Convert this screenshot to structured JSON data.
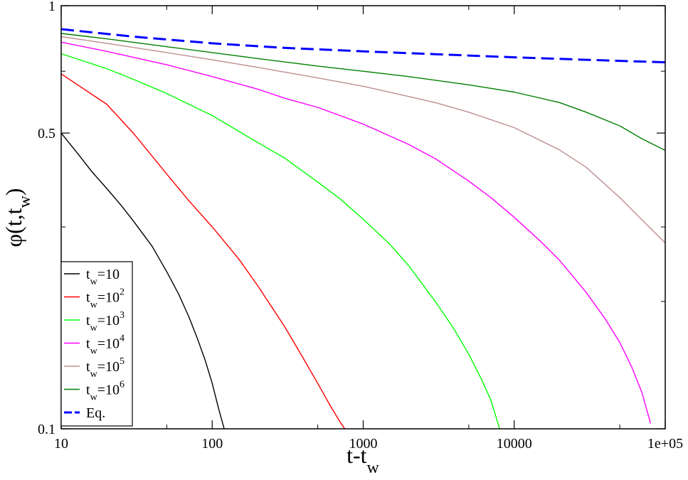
{
  "chart_data": {
    "type": "line",
    "xscale": "log",
    "yscale": "log",
    "xlim": [
      10,
      100000
    ],
    "ylim": [
      0.1,
      1
    ],
    "xlabel": {
      "main": "t-t",
      "sub": "w"
    },
    "ylabel": {
      "main": "φ(t,t",
      "sub": "w",
      "close": ")"
    },
    "x_ticks": [
      {
        "value": 10,
        "label": "10"
      },
      {
        "value": 100,
        "label": "100"
      },
      {
        "value": 1000,
        "label": "1000"
      },
      {
        "value": 10000,
        "label": "10000"
      },
      {
        "value": 100000,
        "label": "1e+05"
      }
    ],
    "y_ticks": [
      {
        "value": 0.1,
        "label": "0.1"
      },
      {
        "value": 0.5,
        "label": "0.5"
      },
      {
        "value": 1,
        "label": "1"
      }
    ],
    "legend_position": "bottom-left",
    "series": [
      {
        "name": "t_w=10",
        "label_base": "t",
        "label_sub": "w",
        "label_eq": "=10",
        "label_sup": "",
        "color": "#000000",
        "dashed": false,
        "x": [
          10,
          13,
          16,
          20,
          25,
          30,
          40,
          50,
          60,
          70,
          80,
          90,
          100,
          110,
          120
        ],
        "y": [
          0.5,
          0.445,
          0.405,
          0.37,
          0.337,
          0.31,
          0.27,
          0.235,
          0.208,
          0.184,
          0.163,
          0.145,
          0.128,
          0.112,
          0.1
        ]
      },
      {
        "name": "t_w=10^2",
        "label_base": "t",
        "label_sub": "w",
        "label_eq": "=10",
        "label_sup": "2",
        "color": "#ff0000",
        "dashed": false,
        "x": [
          10,
          20,
          30,
          50,
          70,
          100,
          150,
          200,
          300,
          400,
          500,
          600,
          700,
          800
        ],
        "y": [
          0.69,
          0.585,
          0.5,
          0.4,
          0.346,
          0.3,
          0.252,
          0.218,
          0.175,
          0.147,
          0.128,
          0.114,
          0.104,
          0.097
        ]
      },
      {
        "name": "t_w=10^3",
        "label_base": "t",
        "label_sub": "w",
        "label_eq": "=10",
        "label_sup": "3",
        "color": "#00ff00",
        "dashed": false,
        "x": [
          10,
          20,
          30,
          50,
          100,
          200,
          300,
          500,
          700,
          1000,
          1500,
          2000,
          3000,
          4000,
          5000,
          6000,
          7000,
          8000
        ],
        "y": [
          0.77,
          0.71,
          0.67,
          0.62,
          0.55,
          0.475,
          0.437,
          0.383,
          0.35,
          0.313,
          0.273,
          0.243,
          0.2,
          0.172,
          0.15,
          0.132,
          0.117,
          0.1
        ]
      },
      {
        "name": "t_w=10^4",
        "label_base": "t",
        "label_sub": "w",
        "label_eq": "=10",
        "label_sup": "4",
        "color": "#ff00ff",
        "dashed": false,
        "x": [
          10,
          20,
          30,
          50,
          100,
          200,
          300,
          500,
          1000,
          2000,
          3000,
          5000,
          7000,
          10000,
          15000,
          20000,
          30000,
          40000,
          50000,
          60000,
          70000,
          80000
        ],
        "y": [
          0.82,
          0.78,
          0.755,
          0.725,
          0.68,
          0.635,
          0.605,
          0.575,
          0.525,
          0.47,
          0.435,
          0.385,
          0.352,
          0.316,
          0.277,
          0.25,
          0.21,
          0.182,
          0.16,
          0.14,
          0.122,
          0.103
        ]
      },
      {
        "name": "t_w=10^5",
        "label_base": "t",
        "label_sub": "w",
        "label_eq": "=10",
        "label_sup": "5",
        "color": "#bc8f8f",
        "dashed": false,
        "x": [
          10,
          20,
          50,
          100,
          200,
          500,
          1000,
          2000,
          3000,
          5000,
          10000,
          20000,
          30000,
          50000,
          70000,
          100000
        ],
        "y": [
          0.845,
          0.815,
          0.775,
          0.745,
          0.715,
          0.675,
          0.645,
          0.61,
          0.59,
          0.56,
          0.515,
          0.456,
          0.415,
          0.352,
          0.312,
          0.275
        ]
      },
      {
        "name": "t_w=10^6",
        "label_base": "t",
        "label_sub": "w",
        "label_eq": "=10",
        "label_sup": "6",
        "color": "#008000",
        "dashed": false,
        "x": [
          10,
          20,
          50,
          100,
          200,
          500,
          1000,
          2000,
          5000,
          10000,
          20000,
          30000,
          50000,
          70000,
          100000
        ],
        "y": [
          0.86,
          0.835,
          0.8,
          0.775,
          0.75,
          0.72,
          0.7,
          0.68,
          0.65,
          0.625,
          0.59,
          0.56,
          0.52,
          0.485,
          0.455
        ]
      },
      {
        "name": "Eq.",
        "label_base": "Eq.",
        "label_sub": "",
        "label_eq": "",
        "label_sup": "",
        "color": "#0000ff",
        "dashed": true,
        "x": [
          10,
          30,
          100,
          300,
          1000,
          3000,
          10000,
          30000,
          100000
        ],
        "y": [
          0.88,
          0.845,
          0.815,
          0.795,
          0.78,
          0.768,
          0.755,
          0.745,
          0.735
        ]
      }
    ]
  }
}
